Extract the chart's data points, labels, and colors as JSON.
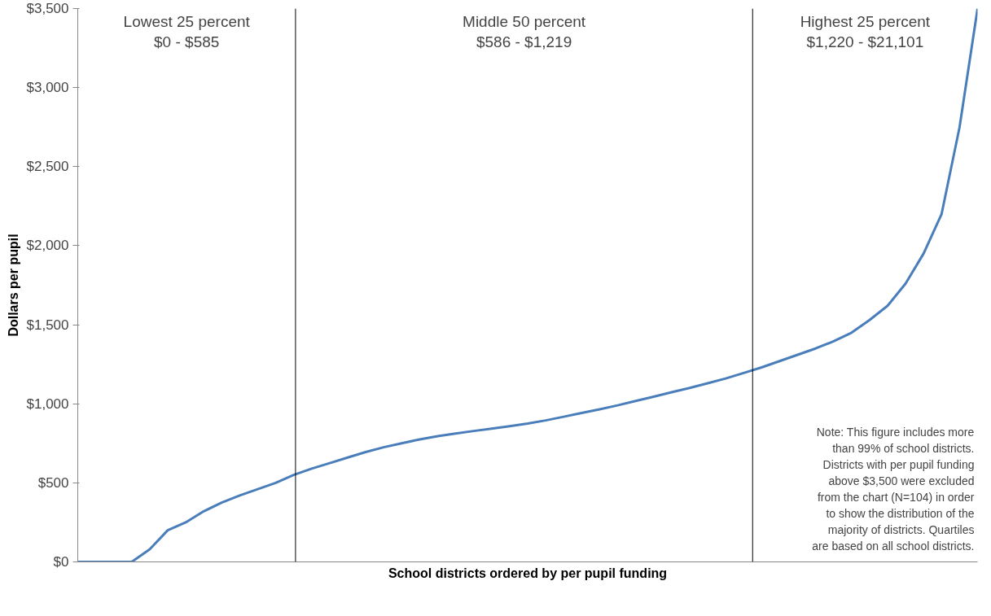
{
  "chart_data": {
    "type": "line",
    "xlabel": "School districts ordered by per pupil funding",
    "ylabel": "Dollars per pupil",
    "categories": [
      null,
      null,
      null,
      null,
      null,
      null,
      null,
      null,
      null,
      null,
      null,
      null,
      null,
      null,
      null,
      null,
      null,
      null,
      null,
      null,
      null,
      null,
      null,
      null,
      null,
      null,
      null,
      null,
      null,
      null,
      null,
      null,
      null,
      null,
      null,
      null,
      null,
      null,
      null,
      null,
      null,
      null,
      null,
      null,
      null,
      null,
      null,
      null,
      null,
      null,
      null
    ],
    "series": [
      {
        "color": "#4a7ebb",
        "values": [
          0,
          0,
          0,
          0,
          80,
          200,
          250,
          320,
          375,
          420,
          460,
          500,
          550,
          590,
          625,
          660,
          695,
          725,
          750,
          775,
          795,
          812,
          828,
          843,
          858,
          875,
          895,
          918,
          942,
          965,
          990,
          1018,
          1045,
          1073,
          1100,
          1130,
          1160,
          1195,
          1230,
          1270,
          1310,
          1350,
          1395,
          1450,
          1530,
          1620,
          1760,
          1950,
          2200,
          2750,
          3500
        ]
      }
    ],
    "ylim": [
      0,
      3500
    ],
    "yticks": [
      {
        "value": 0,
        "label": "$0"
      },
      {
        "value": 500,
        "label": "$500"
      },
      {
        "value": 1000,
        "label": "$1,000"
      },
      {
        "value": 1500,
        "label": "$1,500"
      },
      {
        "value": 2000,
        "label": "$2,000"
      },
      {
        "value": 2500,
        "label": "$2,500"
      },
      {
        "value": 3000,
        "label": "$3,000"
      },
      {
        "value": 3500,
        "label": "$3,500"
      }
    ],
    "tick_labels": "y",
    "grid": false,
    "line_style": "solid",
    "annotations": [
      "Lowest 25 percent\n$0 - $585",
      "Middle 50 percent\n$586 - $1,219",
      "Highest 25 percent\n$1,220 - $21,101",
      "Note: This figure includes more\nthan 99% of school districts.\nDistricts with per pupil funding\nabove $3,500 were excluded\nfrom the chart (N=104) in order\nto show the distribution of the\nmajority of districts. Quartiles\nare based on all school districts."
    ]
  }
}
